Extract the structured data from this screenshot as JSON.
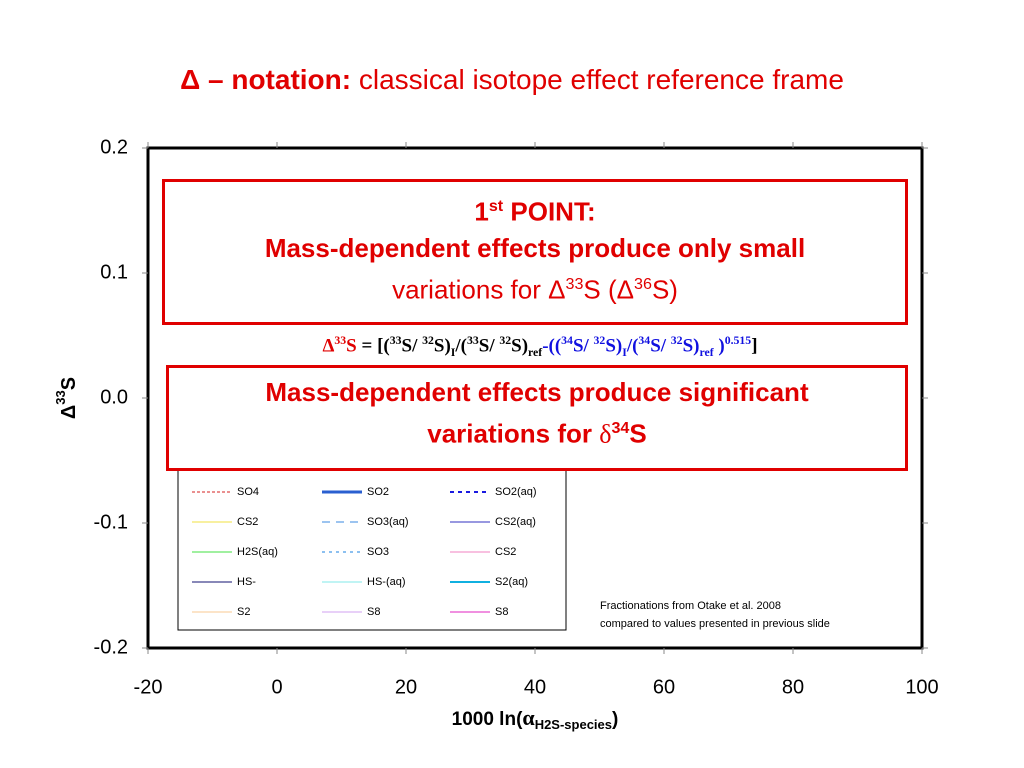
{
  "header": {
    "title_bold": "Δ – notation:",
    "title_rest": "classical isotope effect reference frame"
  },
  "chart_data": {
    "type": "line",
    "ylabel": [
      "Δ",
      "33",
      "S"
    ],
    "xlabel": [
      "1000 ln(",
      "α",
      "H2S-species",
      ")"
    ],
    "xlim": [
      -20,
      100
    ],
    "xticks": [
      -20,
      0,
      20,
      40,
      60,
      80,
      100
    ],
    "ylim": [
      -0.2,
      0.2
    ],
    "yticks": [
      -0.2,
      -0.1,
      {
        "value": 0,
        "label": "0.0"
      },
      0.1,
      0.2
    ],
    "series": [
      {
        "name": "SO4",
        "color": "#d62020",
        "dash": "3,2",
        "width": 1
      },
      {
        "name": "SO2",
        "color": "#2a5fd0",
        "dash": "",
        "width": 3
      },
      {
        "name": "SO2(aq)",
        "color": "#1a1ae0",
        "dash": "4,4",
        "width": 2
      },
      {
        "name": "CS2",
        "color": "#f0e040",
        "dash": "",
        "width": 1
      },
      {
        "name": "SO3(aq)",
        "color": "#9cc4f0",
        "dash": "8,6",
        "width": 2
      },
      {
        "name": "CS2(aq)",
        "color": "#3030c0",
        "dash": "",
        "width": 1
      },
      {
        "name": "H2S(aq)",
        "color": "#a0f0a0",
        "dash": "",
        "width": 2
      },
      {
        "name": "SO3",
        "color": "#8cc0f0",
        "dash": "3,4",
        "width": 2
      },
      {
        "name": "CS2",
        "color": "#f080c0",
        "dash": "",
        "width": 1
      },
      {
        "name": "HS-",
        "color": "#101070",
        "dash": "",
        "width": 1
      },
      {
        "name": "HS-(aq)",
        "color": "#c0f4f4",
        "dash": "",
        "width": 2
      },
      {
        "name": "S2(aq)",
        "color": "#10b0e0",
        "dash": "",
        "width": 2
      },
      {
        "name": "S2",
        "color": "#f8c890",
        "dash": "",
        "width": 1
      },
      {
        "name": "S8",
        "color": "#d0a0f0",
        "dash": "",
        "width": 1
      },
      {
        "name": "S8",
        "color": "#e020c0",
        "dash": "",
        "width": 1
      }
    ],
    "note": [
      "Fractionations from Otake et al. 2008",
      "compared to values presented in previous slide"
    ]
  },
  "box1": [
    "1",
    "st",
    " POINT:",
    "Mass-dependent effects produce only small",
    "variations for Δ",
    "33",
    "S (Δ",
    "36",
    "S)"
  ],
  "formula": [
    "Δ",
    "33",
    "S",
    " = [(",
    "33",
    "S/ ",
    "32",
    "S)",
    "I",
    "/(",
    "33",
    "S/ ",
    "32",
    "S)",
    "ref",
    "-((",
    "34",
    "S/ ",
    "32",
    "S)",
    "I",
    "/(",
    "34",
    "S/ ",
    "32",
    "S)",
    "ref",
    " )",
    "0.515",
    "]"
  ],
  "box2": [
    "Mass-dependent effects produce significant",
    "variations for ",
    "δ",
    "34",
    "S"
  ]
}
